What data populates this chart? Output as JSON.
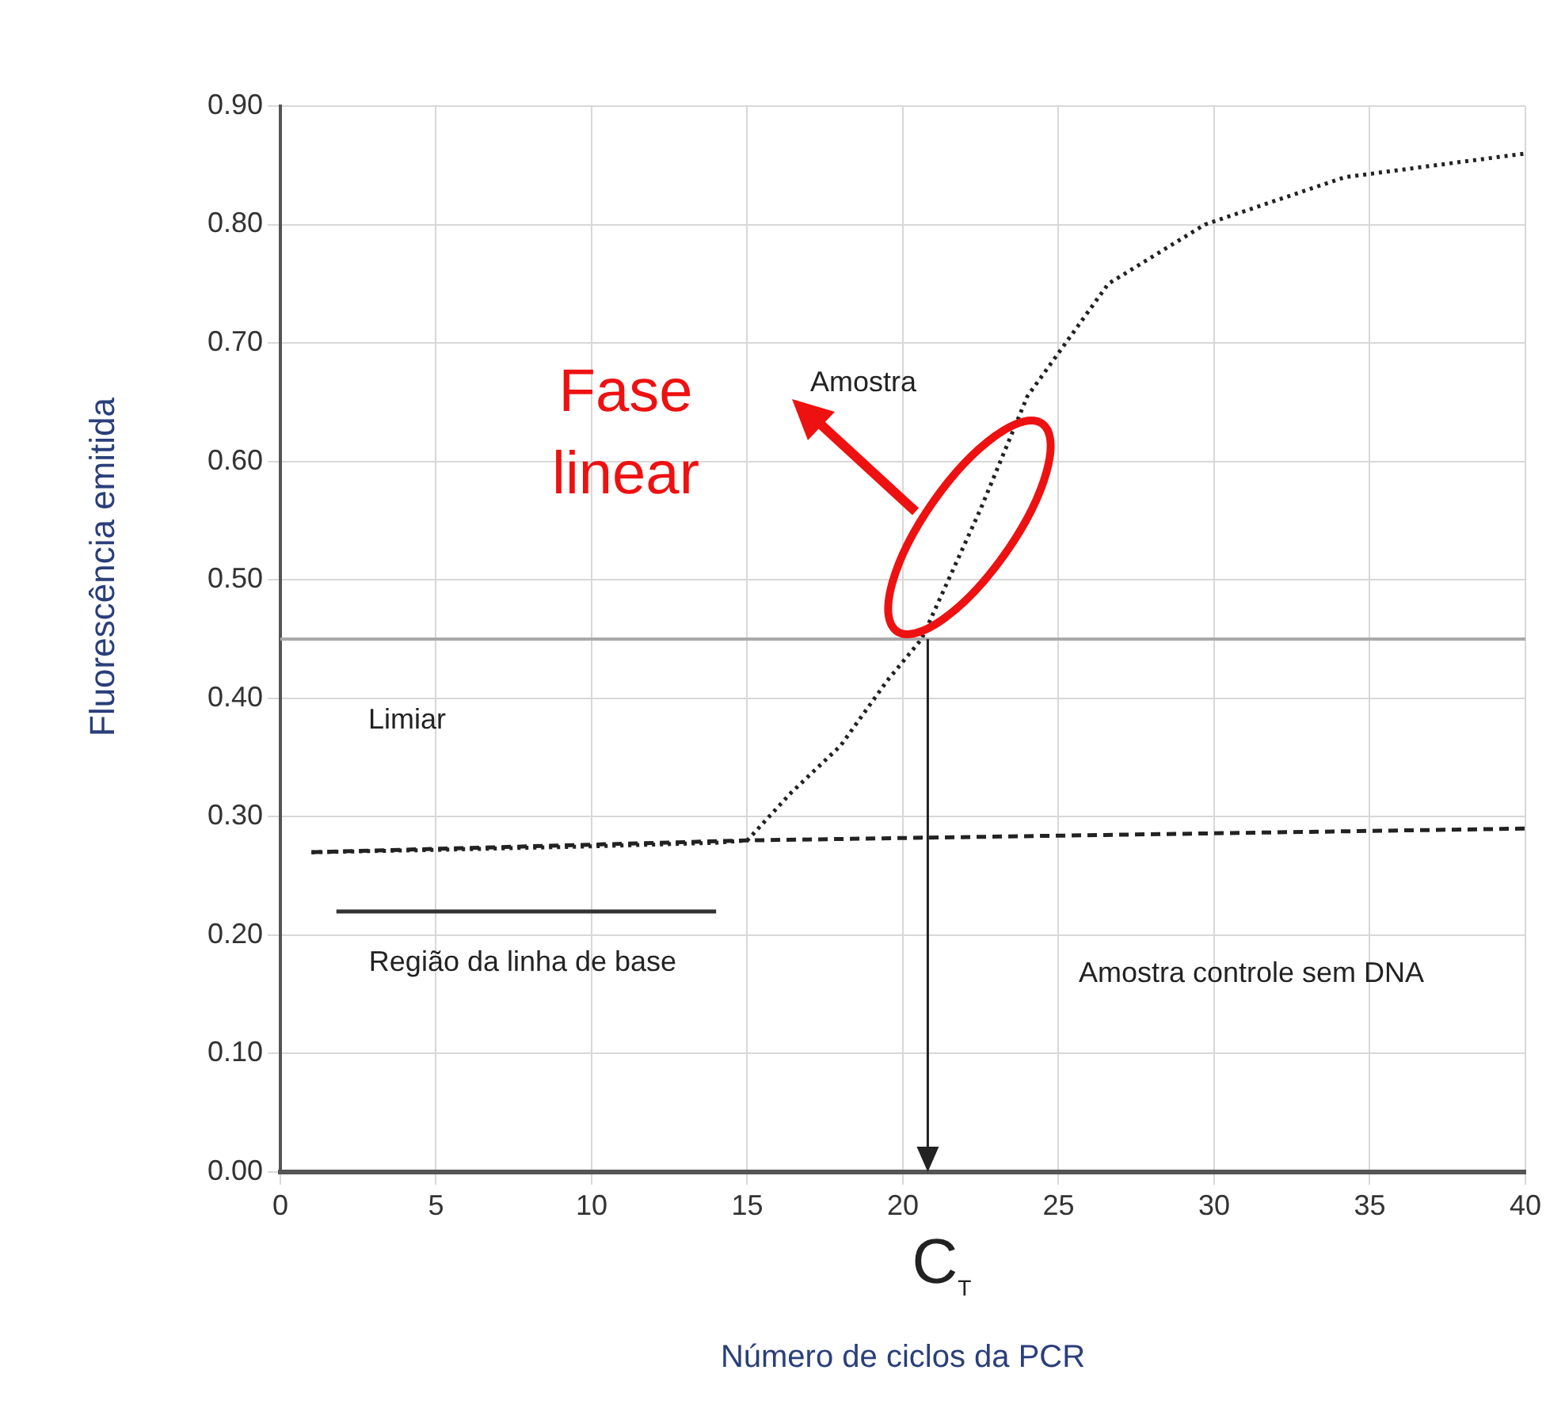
{
  "chart_data": {
    "type": "line",
    "xlabel": "Número de ciclos da PCR",
    "ylabel": "Fluorescência emitida",
    "xlim": [
      0,
      40
    ],
    "xticks": [
      0,
      5,
      10,
      15,
      20,
      25,
      30,
      35,
      40
    ],
    "ylim": [
      0,
      0.9
    ],
    "yticks": [
      {
        "value": 0,
        "label": "0.00"
      },
      {
        "value": 0.1,
        "label": "0.10"
      },
      {
        "value": 0.2,
        "label": "0.20"
      },
      {
        "value": 0.3,
        "label": "0.30"
      },
      {
        "value": 0.4,
        "label": "0.40"
      },
      {
        "value": 0.5,
        "label": "0.50"
      },
      {
        "value": 0.6,
        "label": "0.60"
      },
      {
        "value": 0.7,
        "label": "0.70"
      },
      {
        "value": 0.8,
        "label": "0.80"
      },
      {
        "value": 0.9,
        "label": "0.90"
      }
    ],
    "grid": true,
    "legend": false,
    "marker": "none",
    "series": [
      {
        "color": "#222222",
        "line_style": "dotted",
        "x": [
          1,
          5,
          10,
          14,
          15,
          16.4,
          18,
          19.5,
          20.6,
          22.5,
          24,
          26.6,
          29.7,
          34.2,
          40
        ],
        "values": [
          0.27,
          0.272,
          0.275,
          0.278,
          0.28,
          0.32,
          0.36,
          0.415,
          0.45,
          0.56,
          0.655,
          0.75,
          0.8,
          0.84,
          0.86
        ]
      },
      {
        "color": "#222222",
        "line_style": "dashed",
        "x": [
          1,
          15,
          40
        ],
        "values": [
          0.27,
          0.28,
          0.29
        ]
      },
      {
        "color": "#333333",
        "line_style": "solid",
        "x": [
          1.8,
          14
        ],
        "values": [
          0.22,
          0.22
        ]
      }
    ],
    "ref_lines": [
      {
        "axis": "y",
        "value": 0.45,
        "color": "#aaaaaa"
      },
      {
        "axis": "x",
        "value": 20.8,
        "label": "C$_{T}$",
        "color": "#222222"
      }
    ],
    "annotations": [
      "Amostra",
      "Limiar",
      "Região da linha de base",
      "Amostra controle sem DNA",
      "Fase linear"
    ]
  }
}
